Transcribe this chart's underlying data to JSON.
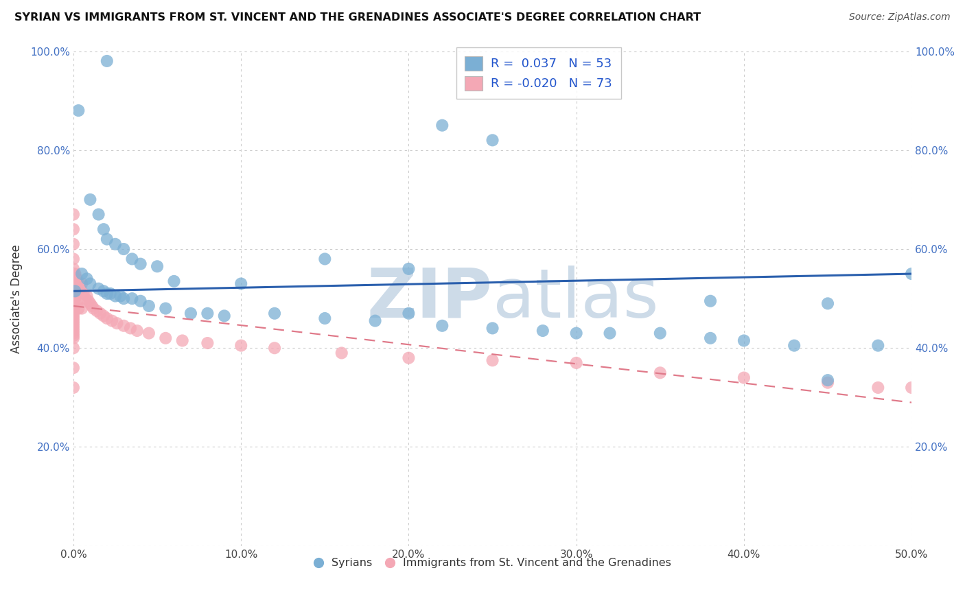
{
  "title": "SYRIAN VS IMMIGRANTS FROM ST. VINCENT AND THE GRENADINES ASSOCIATE'S DEGREE CORRELATION CHART",
  "source": "Source: ZipAtlas.com",
  "ylabel": "Associate's Degree",
  "xlim": [
    0.0,
    50.0
  ],
  "ylim": [
    0.0,
    100.0
  ],
  "color_blue": "#7BAFD4",
  "color_pink": "#F4A8B5",
  "color_blue_line": "#2a5fad",
  "color_pink_line": "#e07a8a",
  "watermark": "ZIPatlas",
  "watermark_color": "#d0dfee",
  "background_color": "#ffffff",
  "blue_line_y0": 51.5,
  "blue_line_y1": 55.0,
  "pink_line_y0": 48.5,
  "pink_line_y1": 29.0,
  "syrians_x": [
    2.0,
    0.3,
    1.0,
    1.5,
    1.8,
    2.0,
    2.5,
    3.0,
    3.5,
    4.0,
    5.0,
    0.5,
    0.8,
    1.0,
    1.5,
    1.8,
    2.0,
    2.2,
    2.5,
    2.8,
    3.0,
    3.5,
    4.0,
    4.5,
    5.5,
    7.0,
    8.0,
    9.0,
    10.0,
    12.0,
    15.0,
    18.0,
    20.0,
    22.0,
    25.0,
    28.0,
    30.0,
    32.0,
    35.0,
    38.0,
    40.0,
    43.0,
    45.0,
    48.0,
    50.0,
    0.1,
    6.0,
    22.0,
    25.0,
    20.0,
    15.0,
    38.0,
    45.0
  ],
  "syrians_y": [
    98.0,
    88.0,
    70.0,
    67.0,
    64.0,
    62.0,
    61.0,
    60.0,
    58.0,
    57.0,
    56.5,
    55.0,
    54.0,
    53.0,
    52.0,
    51.5,
    51.0,
    51.0,
    50.5,
    50.5,
    50.0,
    50.0,
    49.5,
    48.5,
    48.0,
    47.0,
    47.0,
    46.5,
    53.0,
    47.0,
    46.0,
    45.5,
    47.0,
    44.5,
    44.0,
    43.5,
    43.0,
    43.0,
    43.0,
    42.0,
    41.5,
    40.5,
    33.5,
    40.5,
    55.0,
    51.5,
    53.5,
    85.0,
    82.0,
    56.0,
    58.0,
    49.5,
    49.0
  ],
  "svg_x": [
    0.0,
    0.0,
    0.0,
    0.0,
    0.0,
    0.0,
    0.0,
    0.0,
    0.0,
    0.0,
    0.0,
    0.0,
    0.0,
    0.0,
    0.0,
    0.0,
    0.0,
    0.0,
    0.0,
    0.0,
    0.0,
    0.0,
    0.0,
    0.0,
    0.0,
    0.0,
    0.0,
    0.0,
    0.0,
    0.0,
    0.1,
    0.1,
    0.2,
    0.2,
    0.3,
    0.3,
    0.4,
    0.5,
    0.5,
    0.6,
    0.7,
    0.8,
    0.9,
    1.0,
    1.1,
    1.2,
    1.4,
    1.6,
    1.8,
    2.0,
    2.3,
    2.6,
    3.0,
    3.4,
    3.8,
    4.5,
    5.5,
    6.5,
    8.0,
    10.0,
    12.0,
    16.0,
    20.0,
    25.0,
    30.0,
    35.0,
    40.0,
    45.0,
    48.0,
    50.0,
    0.0,
    0.0,
    0.0
  ],
  "svg_y": [
    67.0,
    64.0,
    61.0,
    58.0,
    56.0,
    55.0,
    54.0,
    53.0,
    52.5,
    52.0,
    51.5,
    51.0,
    50.5,
    50.0,
    49.5,
    49.0,
    48.5,
    48.0,
    47.5,
    47.0,
    46.5,
    46.0,
    45.5,
    45.0,
    44.5,
    44.0,
    43.5,
    43.0,
    42.5,
    42.0,
    55.0,
    50.0,
    54.0,
    49.0,
    53.0,
    48.0,
    52.0,
    53.0,
    48.0,
    51.0,
    50.0,
    50.5,
    49.5,
    49.0,
    48.5,
    48.0,
    47.5,
    47.0,
    46.5,
    46.0,
    45.5,
    45.0,
    44.5,
    44.0,
    43.5,
    43.0,
    42.0,
    41.5,
    41.0,
    40.5,
    40.0,
    39.0,
    38.0,
    37.5,
    37.0,
    35.0,
    34.0,
    33.0,
    32.0,
    32.0,
    40.0,
    36.0,
    32.0
  ]
}
